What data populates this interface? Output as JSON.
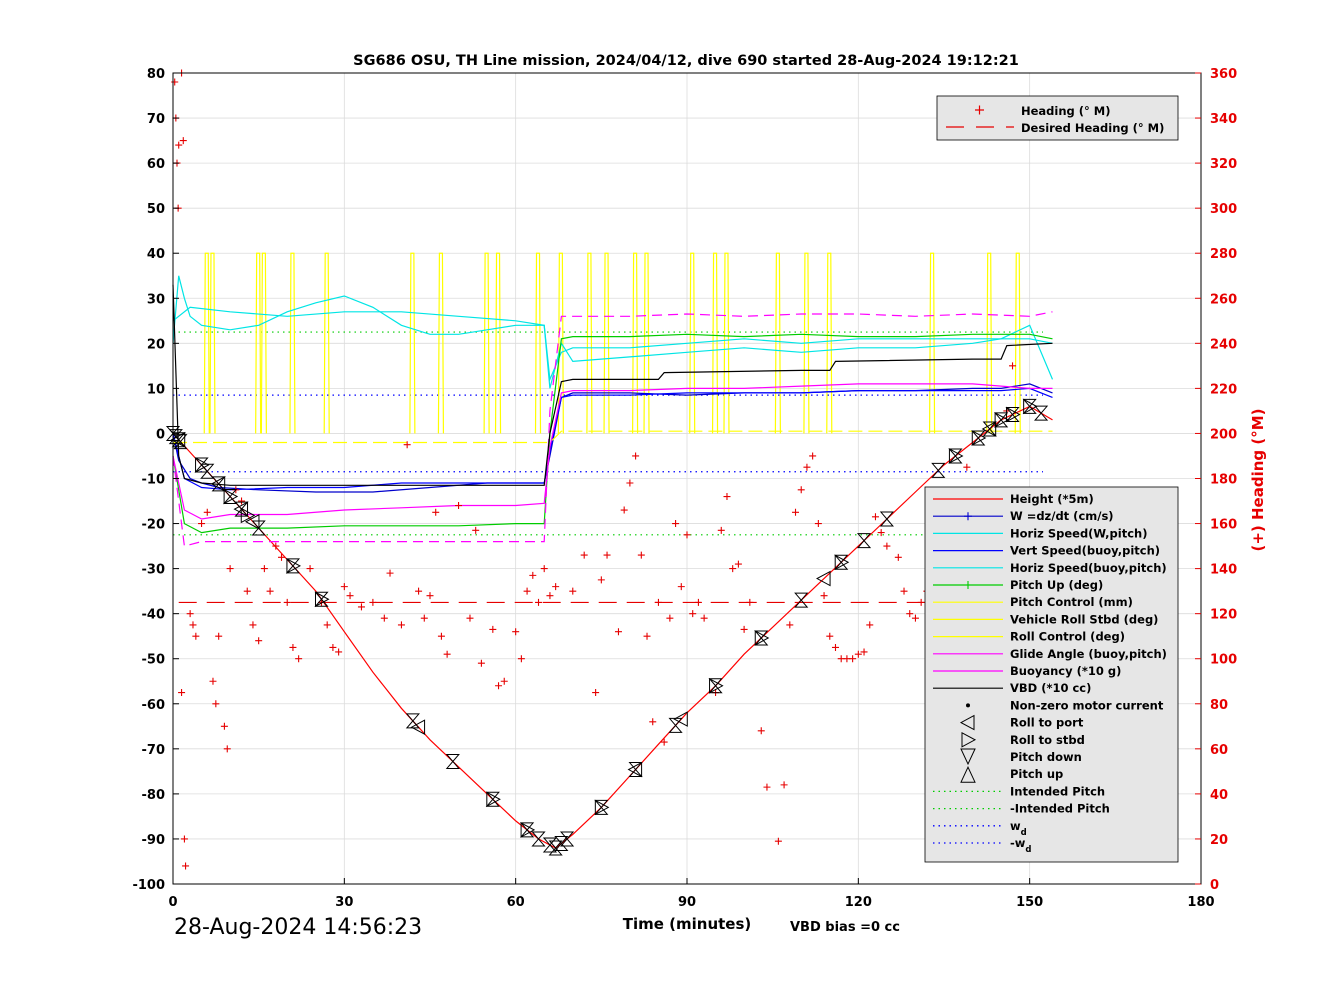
{
  "chart_data": {
    "type": "line",
    "title": "SG686 OSU, TH Line mission, 2024/04/12, dive 690 started 28-Aug-2024 19:12:21",
    "xlabel": "Time (minutes)",
    "ylabel_left": "",
    "ylabel_right": "(+) Heading (°M)",
    "xlim": [
      0,
      180
    ],
    "ylim_left": [
      -100,
      80
    ],
    "ylim_right": [
      0,
      360
    ],
    "x_ticks": [
      "0",
      "30",
      "60",
      "90",
      "120",
      "150",
      "180"
    ],
    "y_ticks_left": [
      "80",
      "70",
      "60",
      "50",
      "40",
      "30",
      "20",
      "10",
      "0",
      "-10",
      "-20",
      "-30",
      "-40",
      "-50",
      "-60",
      "-70",
      "-80",
      "-90",
      "-100"
    ],
    "y_ticks_right": [
      "360",
      "340",
      "320",
      "300",
      "280",
      "260",
      "240",
      "220",
      "200",
      "180",
      "160",
      "140",
      "120",
      "100",
      "80",
      "60",
      "40",
      "20",
      "0"
    ],
    "grid": true,
    "footer_left": "28-Aug-2024 14:56:23",
    "footer_right": "VBD bias =0 cc",
    "colors": {
      "heading": "#ff0000",
      "height": "#ff0000",
      "w": "#0000cc",
      "horiz_speed": "#00e5e5",
      "vert_speed_buoy": "#0000ff",
      "pitch_up": "#00cc00",
      "pitch_control": "#ffff00",
      "roll_stbd": "#ffff00",
      "roll_control": "#ffff00",
      "glide_angle": "#ff00ff",
      "buoyancy": "#ff00ff",
      "vbd": "#000000",
      "intended_pitch": "#00cc00",
      "wd": "#0000ff"
    },
    "legend_top": {
      "placement": "top-right",
      "entries": [
        "Heading (° M)",
        "Desired Heading (° M)"
      ]
    },
    "legend_main": {
      "placement": "lower-right",
      "entries": [
        "Height (*5m)",
        "W =dz/dt (cm/s)",
        "Horiz Speed(W,pitch)",
        "Vert Speed(buoy,pitch)",
        "Horiz Speed(buoy,pitch)",
        "Pitch Up (deg)",
        "Pitch Control (mm)",
        "Vehicle Roll Stbd (deg)",
        "Roll Control (deg)",
        "Glide Angle (buoy,pitch)",
        "Buoyancy (*10 g)",
        "VBD (*10 cc)",
        "Non-zero motor current",
        "Roll to port",
        "Roll to stbd",
        "Pitch down",
        "Pitch up",
        "Intended Pitch",
        "-Intended Pitch",
        "w",
        "-w"
      ],
      "subscript": "d"
    },
    "desired_heading": 125,
    "intended_pitch": 22.5,
    "wd": 8.5,
    "series": [
      {
        "name": "Height (*5m)",
        "axis": "left",
        "x": [
          0,
          5,
          10,
          15,
          20,
          25,
          30,
          35,
          40,
          45,
          50,
          55,
          60,
          64,
          67,
          70,
          75,
          80,
          85,
          90,
          95,
          100,
          105,
          110,
          115,
          120,
          125,
          130,
          135,
          140,
          145,
          150,
          154
        ],
        "y": [
          0,
          -7,
          -14,
          -21,
          -28,
          -35,
          -44,
          -53,
          -61,
          -68,
          -74,
          -80,
          -86,
          -90,
          -92,
          -89,
          -83,
          -76,
          -69,
          -62,
          -56,
          -49,
          -43,
          -37,
          -31,
          -25,
          -19,
          -13,
          -7,
          -2,
          3,
          6,
          3
        ]
      },
      {
        "name": "W =dz/dt (cm/s)",
        "axis": "left",
        "x": [
          0,
          1,
          3,
          5,
          8,
          15,
          25,
          35,
          45,
          55,
          60,
          65,
          66,
          68,
          70,
          80,
          90,
          100,
          110,
          120,
          130,
          140,
          145,
          150,
          154
        ],
        "y": [
          0,
          -6,
          -10,
          -11,
          -12,
          -12.5,
          -13,
          -13,
          -12,
          -11,
          -11,
          -11,
          -5,
          8,
          9,
          9,
          8.5,
          9,
          9,
          9.5,
          9.5,
          10,
          10,
          11,
          9
        ]
      },
      {
        "name": "Horiz Speed(W,pitch)",
        "axis": "left",
        "x": [
          0,
          1,
          2,
          3,
          5,
          10,
          15,
          20,
          25,
          30,
          35,
          40,
          45,
          50,
          55,
          60,
          65,
          66,
          68,
          70,
          80,
          90,
          100,
          110,
          120,
          130,
          140,
          145,
          150,
          154
        ],
        "y": [
          20,
          35,
          30,
          26,
          24,
          23,
          24,
          27,
          29,
          30.5,
          28,
          24,
          22,
          22,
          23,
          24,
          24,
          10,
          20,
          16,
          17,
          18,
          19,
          18,
          19,
          19,
          20,
          21,
          24,
          12
        ]
      },
      {
        "name": "Vert Speed(buoy,pitch)",
        "axis": "left",
        "x": [
          0,
          2,
          5,
          10,
          20,
          30,
          40,
          50,
          60,
          65,
          66,
          68,
          70,
          80,
          90,
          100,
          110,
          120,
          130,
          140,
          145,
          150,
          154
        ],
        "y": [
          0,
          -10,
          -12,
          -12.5,
          -12,
          -12,
          -11,
          -11,
          -11,
          -11,
          -4,
          8,
          8.5,
          8.5,
          9,
          9,
          9,
          9.5,
          9.5,
          9.5,
          9.5,
          10,
          8
        ]
      },
      {
        "name": "Horiz Speed(buoy,pitch)",
        "axis": "left",
        "x": [
          0,
          3,
          10,
          20,
          30,
          40,
          50,
          60,
          65,
          66,
          68,
          70,
          80,
          90,
          100,
          110,
          120,
          130,
          140,
          150,
          154
        ],
        "y": [
          25,
          28,
          27,
          26,
          27,
          27,
          26,
          25,
          24,
          12,
          18,
          19,
          19,
          20,
          21,
          20,
          21,
          21,
          21,
          21,
          20
        ]
      },
      {
        "name": "Pitch Up (deg)",
        "axis": "left",
        "x": [
          0,
          2,
          5,
          10,
          20,
          30,
          40,
          50,
          60,
          65,
          66,
          68,
          70,
          80,
          90,
          100,
          110,
          120,
          130,
          140,
          150,
          154
        ],
        "y": [
          -5,
          -20,
          -22,
          -21,
          -21,
          -20.5,
          -20.5,
          -20.5,
          -20,
          -20,
          0,
          21,
          21.5,
          21.5,
          22,
          21.5,
          22,
          21.5,
          21.5,
          22,
          22,
          21
        ]
      },
      {
        "name": "Glide Angle (buoy,pitch)",
        "axis": "left",
        "x": [
          0,
          2,
          5,
          10,
          20,
          30,
          40,
          50,
          60,
          65,
          66,
          68,
          70,
          80,
          90,
          100,
          110,
          120,
          130,
          140,
          150,
          154
        ],
        "y": [
          -5,
          -17,
          -19,
          -18,
          -18,
          -17,
          -16.5,
          -16,
          -16,
          -15.5,
          -3,
          9,
          9.5,
          9.5,
          10,
          10,
          10.5,
          11,
          11,
          11,
          10,
          10
        ]
      },
      {
        "name": "Buoyancy (*10 g)",
        "axis": "left",
        "x": [
          0,
          2,
          5,
          10,
          20,
          30,
          40,
          50,
          60,
          65,
          66,
          68,
          70,
          80,
          90,
          100,
          110,
          120,
          130,
          140,
          150,
          154
        ],
        "y": [
          -5,
          -25,
          -24,
          -24,
          -24,
          -24,
          -24,
          -24,
          -24,
          -24,
          5,
          26,
          26,
          26,
          26.5,
          26,
          26.5,
          26.5,
          26,
          26.5,
          26,
          27
        ]
      },
      {
        "name": "VBD (*10 cc)",
        "axis": "left",
        "x": [
          0,
          1,
          2,
          5,
          10,
          20,
          30,
          40,
          50,
          60,
          65,
          66,
          68,
          70,
          80,
          85,
          86,
          110,
          115,
          116,
          140,
          145,
          146,
          154
        ],
        "y": [
          33,
          -5,
          -10,
          -11,
          -11.5,
          -11.5,
          -11.5,
          -11.5,
          -11.5,
          -11.5,
          -11.5,
          0,
          11.5,
          12,
          12,
          12,
          13.5,
          14,
          14,
          16,
          16.5,
          16.5,
          19.5,
          20
        ]
      },
      {
        "name": "Pitch Control (mm)",
        "axis": "left",
        "x": [
          0,
          2,
          5,
          10,
          20,
          30,
          40,
          50,
          60,
          65,
          66,
          68,
          70,
          80,
          90,
          100,
          110,
          120,
          130,
          140,
          150,
          154
        ],
        "y": [
          -2,
          -2,
          -2,
          -2,
          -2,
          -2,
          -2,
          -2,
          -2,
          -2,
          -2,
          0.5,
          0.5,
          0.5,
          0.5,
          0.5,
          0.5,
          0.5,
          0.5,
          0.5,
          0.5,
          0.5
        ]
      }
    ],
    "roll_spikes_x": [
      6,
      7,
      15,
      16,
      21,
      27,
      42,
      47,
      55,
      57,
      64,
      68,
      73,
      76,
      81,
      83,
      91,
      95,
      97,
      106,
      111,
      115,
      133,
      143,
      148
    ],
    "heading_points": [
      [
        0.3,
        356
      ],
      [
        0.5,
        340
      ],
      [
        0.7,
        320
      ],
      [
        0.9,
        300
      ],
      [
        1,
        328
      ],
      [
        1.5,
        360
      ],
      [
        1.8,
        330
      ],
      [
        2,
        20
      ],
      [
        2.2,
        8
      ],
      [
        1.5,
        85
      ],
      [
        3,
        120
      ],
      [
        3.5,
        115
      ],
      [
        4,
        110
      ],
      [
        5,
        160
      ],
      [
        6,
        165
      ],
      [
        7,
        90
      ],
      [
        7.5,
        80
      ],
      [
        8,
        110
      ],
      [
        9,
        70
      ],
      [
        9.5,
        60
      ],
      [
        10,
        140
      ],
      [
        11,
        175
      ],
      [
        12,
        170
      ],
      [
        13,
        130
      ],
      [
        14,
        115
      ],
      [
        15,
        108
      ],
      [
        16,
        140
      ],
      [
        17,
        130
      ],
      [
        18,
        150
      ],
      [
        19,
        145
      ],
      [
        20,
        125
      ],
      [
        21,
        105
      ],
      [
        22,
        100
      ],
      [
        24,
        140
      ],
      [
        26,
        125
      ],
      [
        27,
        115
      ],
      [
        28,
        105
      ],
      [
        29,
        103
      ],
      [
        30,
        132
      ],
      [
        31,
        128
      ],
      [
        33,
        123
      ],
      [
        35,
        125
      ],
      [
        37,
        118
      ],
      [
        38,
        138
      ],
      [
        40,
        115
      ],
      [
        41,
        195
      ],
      [
        43,
        130
      ],
      [
        44,
        118
      ],
      [
        45,
        128
      ],
      [
        46,
        165
      ],
      [
        47,
        110
      ],
      [
        48,
        102
      ],
      [
        50,
        168
      ],
      [
        52,
        118
      ],
      [
        53,
        157
      ],
      [
        54,
        98
      ],
      [
        56,
        113
      ],
      [
        57,
        88
      ],
      [
        58,
        90
      ],
      [
        60,
        112
      ],
      [
        61,
        100
      ],
      [
        62,
        130
      ],
      [
        63,
        137
      ],
      [
        64,
        125
      ],
      [
        65,
        140
      ],
      [
        66,
        128
      ],
      [
        67,
        132
      ],
      [
        70,
        130
      ],
      [
        72,
        146
      ],
      [
        74,
        85
      ],
      [
        75,
        135
      ],
      [
        76,
        146
      ],
      [
        78,
        112
      ],
      [
        79,
        166
      ],
      [
        80,
        178
      ],
      [
        81,
        190
      ],
      [
        82,
        146
      ],
      [
        83,
        110
      ],
      [
        84,
        72
      ],
      [
        85,
        125
      ],
      [
        86,
        63
      ],
      [
        87,
        118
      ],
      [
        88,
        160
      ],
      [
        89,
        132
      ],
      [
        90,
        155
      ],
      [
        91,
        120
      ],
      [
        92,
        125
      ],
      [
        93,
        118
      ],
      [
        95,
        85
      ],
      [
        96,
        157
      ],
      [
        97,
        172
      ],
      [
        98,
        140
      ],
      [
        99,
        142
      ],
      [
        100,
        113
      ],
      [
        101,
        125
      ],
      [
        103,
        68
      ],
      [
        104,
        43
      ],
      [
        106,
        19
      ],
      [
        107,
        44
      ],
      [
        108,
        115
      ],
      [
        109,
        165
      ],
      [
        110,
        175
      ],
      [
        111,
        185
      ],
      [
        112,
        190
      ],
      [
        113,
        160
      ],
      [
        114,
        128
      ],
      [
        115,
        110
      ],
      [
        116,
        105
      ],
      [
        117,
        100
      ],
      [
        118,
        100
      ],
      [
        119,
        100
      ],
      [
        120,
        102
      ],
      [
        121,
        103
      ],
      [
        122,
        115
      ],
      [
        123,
        163
      ],
      [
        124,
        156
      ],
      [
        125,
        150
      ],
      [
        127,
        145
      ],
      [
        128,
        130
      ],
      [
        129,
        120
      ],
      [
        130,
        118
      ],
      [
        131,
        125
      ],
      [
        132,
        130
      ],
      [
        133,
        140
      ],
      [
        134,
        130
      ],
      [
        135,
        120
      ],
      [
        136,
        105
      ],
      [
        137,
        112
      ],
      [
        138,
        140
      ],
      [
        139,
        185
      ],
      [
        140,
        160
      ],
      [
        141,
        120
      ],
      [
        142,
        100
      ],
      [
        143,
        90
      ],
      [
        144,
        130
      ],
      [
        145,
        170
      ],
      [
        146,
        210
      ],
      [
        147,
        230
      ]
    ],
    "markers": {
      "pitch_events_x": [
        0,
        0.5,
        1,
        1.3,
        5,
        6,
        8,
        10,
        12,
        15,
        21,
        26,
        42,
        49,
        56,
        62,
        64,
        66,
        67,
        68,
        69,
        75,
        81,
        88,
        95,
        103,
        110,
        117,
        121,
        125,
        134,
        137,
        141,
        143,
        145,
        147,
        150,
        152
      ],
      "roll_port_x": [
        1,
        8,
        12,
        14,
        43,
        81,
        89,
        114,
        143
      ],
      "roll_stbd_x": [
        5,
        10,
        13,
        21,
        26,
        56,
        62,
        75,
        95,
        103,
        117,
        137,
        141,
        145,
        147,
        150
      ]
    }
  }
}
